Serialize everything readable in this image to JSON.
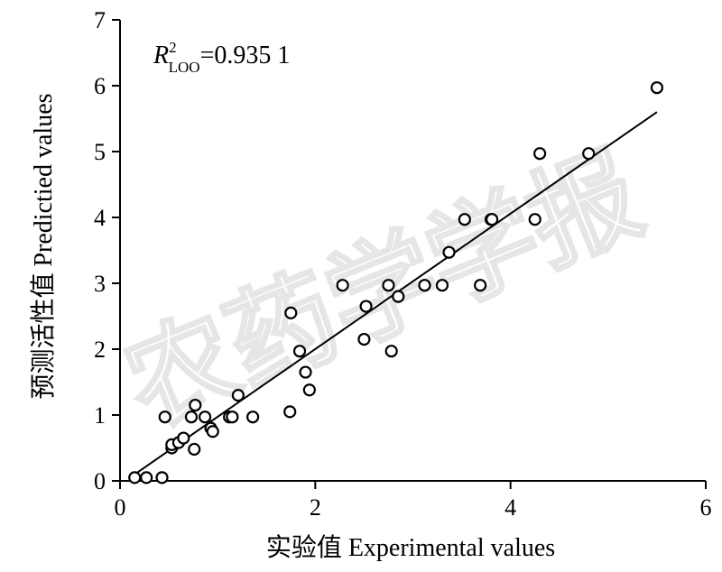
{
  "watermark": "农药学学报",
  "chart_data": {
    "type": "scatter",
    "xlabel": "实验值  Experimental values",
    "ylabel": "预测活性值  Predictied values",
    "xlim": [
      0,
      6
    ],
    "ylim": [
      0,
      7
    ],
    "xticks": [
      0,
      2,
      4,
      6
    ],
    "yticks": [
      0,
      1,
      2,
      3,
      4,
      5,
      6,
      7
    ],
    "annotation": {
      "symbol": "R",
      "superscript": "2",
      "subscript": "LOO",
      "value": "=0.935 1"
    },
    "fit_line": {
      "x": [
        0.18,
        5.5
      ],
      "y": [
        0.13,
        5.6
      ]
    },
    "points": [
      {
        "x": 0.15,
        "y": 0.05
      },
      {
        "x": 0.27,
        "y": 0.05
      },
      {
        "x": 0.43,
        "y": 0.05
      },
      {
        "x": 0.46,
        "y": 0.97
      },
      {
        "x": 0.53,
        "y": 0.5
      },
      {
        "x": 0.53,
        "y": 0.55
      },
      {
        "x": 0.6,
        "y": 0.58
      },
      {
        "x": 0.65,
        "y": 0.65
      },
      {
        "x": 0.73,
        "y": 0.97
      },
      {
        "x": 0.76,
        "y": 0.48
      },
      {
        "x": 0.77,
        "y": 1.15
      },
      {
        "x": 0.87,
        "y": 0.97
      },
      {
        "x": 0.93,
        "y": 0.8
      },
      {
        "x": 0.95,
        "y": 0.75
      },
      {
        "x": 1.12,
        "y": 0.97
      },
      {
        "x": 1.15,
        "y": 0.97
      },
      {
        "x": 1.21,
        "y": 1.3
      },
      {
        "x": 1.36,
        "y": 0.97
      },
      {
        "x": 1.74,
        "y": 1.05
      },
      {
        "x": 1.75,
        "y": 2.55
      },
      {
        "x": 1.84,
        "y": 1.97
      },
      {
        "x": 1.9,
        "y": 1.65
      },
      {
        "x": 1.94,
        "y": 1.38
      },
      {
        "x": 2.28,
        "y": 2.97
      },
      {
        "x": 2.5,
        "y": 2.15
      },
      {
        "x": 2.52,
        "y": 2.65
      },
      {
        "x": 2.75,
        "y": 2.97
      },
      {
        "x": 2.78,
        "y": 1.97
      },
      {
        "x": 2.85,
        "y": 2.8
      },
      {
        "x": 3.12,
        "y": 2.97
      },
      {
        "x": 3.3,
        "y": 2.97
      },
      {
        "x": 3.37,
        "y": 3.47
      },
      {
        "x": 3.53,
        "y": 3.97
      },
      {
        "x": 3.69,
        "y": 2.97
      },
      {
        "x": 3.8,
        "y": 3.97
      },
      {
        "x": 3.81,
        "y": 3.97
      },
      {
        "x": 4.25,
        "y": 3.97
      },
      {
        "x": 4.3,
        "y": 4.97
      },
      {
        "x": 4.8,
        "y": 4.97
      },
      {
        "x": 5.5,
        "y": 5.97
      }
    ]
  }
}
